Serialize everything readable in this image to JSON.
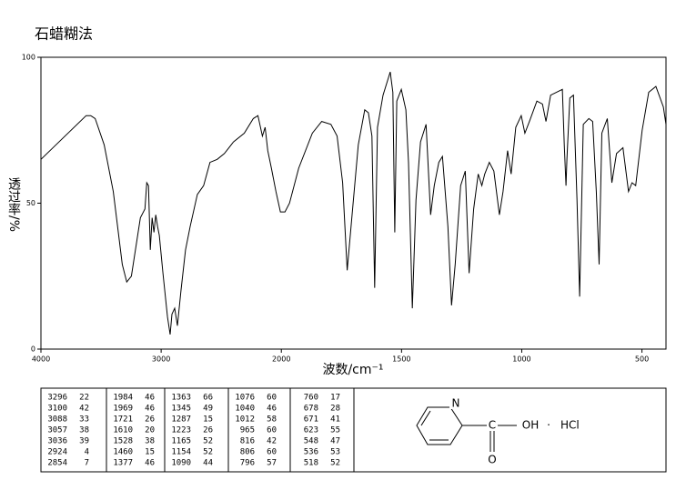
{
  "chart_data": {
    "type": "line",
    "title": "石蜡糊法",
    "xlabel": "波数/cm⁻¹",
    "ylabel": "透过率/%",
    "color": "#000000",
    "xlim": [
      4000,
      400
    ],
    "x_scale_break": 2000,
    "x_scale_ratio": 2,
    "ylim": [
      0,
      100
    ],
    "xticks": [
      4000,
      3000,
      2000,
      1500,
      1000,
      500
    ],
    "yticks": [
      0,
      50,
      100
    ],
    "x": [
      4000,
      3624,
      3586,
      3549,
      3474,
      3398,
      3323,
      3286,
      3248,
      3173,
      3135,
      3120,
      3105,
      3090,
      3075,
      3060,
      3045,
      3030,
      3015,
      2985,
      2947,
      2925,
      2910,
      2887,
      2865,
      2835,
      2797,
      2759,
      2699,
      2647,
      2594,
      2534,
      2474,
      2398,
      2308,
      2233,
      2195,
      2158,
      2135,
      2113,
      2083,
      2045,
      2008,
      1985,
      1966,
      1928,
      1871,
      1832,
      1794,
      1768,
      1745,
      1726,
      1707,
      1680,
      1653,
      1638,
      1623,
      1612,
      1600,
      1577,
      1547,
      1536,
      1528,
      1520,
      1501,
      1482,
      1471,
      1455,
      1440,
      1421,
      1398,
      1379,
      1364,
      1345,
      1330,
      1307,
      1292,
      1277,
      1254,
      1235,
      1219,
      1200,
      1181,
      1166,
      1154,
      1135,
      1116,
      1093,
      1078,
      1059,
      1044,
      1025,
      1002,
      987,
      968,
      937,
      914,
      899,
      880,
      831,
      823,
      816,
      812,
      800,
      785,
      770,
      759,
      744,
      721,
      705,
      690,
      678,
      667,
      644,
      625,
      606,
      579,
      556,
      541,
      526,
      499,
      472,
      442,
      411,
      400
    ],
    "values": [
      65,
      80,
      80,
      79,
      70,
      54,
      29,
      23,
      25,
      45,
      48,
      57,
      56,
      34,
      45,
      40,
      46,
      42,
      39,
      26,
      11,
      5,
      12,
      14,
      8,
      20,
      34,
      42,
      53,
      56,
      64,
      65,
      67,
      71,
      74,
      79,
      80,
      73,
      76,
      68,
      62,
      54,
      47,
      47,
      50,
      62,
      74,
      78,
      77,
      73,
      57,
      27,
      45,
      70,
      82,
      81,
      73,
      21,
      76,
      87,
      95,
      88,
      40,
      85,
      89,
      82,
      64,
      14,
      51,
      71,
      77,
      46,
      56,
      64,
      66,
      42,
      15,
      29,
      56,
      61,
      26,
      48,
      60,
      56,
      60,
      64,
      61,
      46,
      54,
      68,
      60,
      76,
      80,
      74,
      78,
      85,
      84,
      78,
      87,
      89,
      70,
      56,
      65,
      86,
      87,
      51,
      18,
      77,
      79,
      78,
      54,
      29,
      74,
      79,
      57,
      67,
      69,
      54,
      57,
      56,
      75,
      88,
      90,
      83,
      77
    ]
  },
  "peak_table": {
    "columns": [
      [
        [
          3296,
          22
        ],
        [
          3100,
          42
        ],
        [
          3088,
          33
        ],
        [
          3057,
          38
        ],
        [
          3036,
          39
        ],
        [
          2924,
          4
        ],
        [
          2854,
          7
        ]
      ],
      [
        [
          1984,
          46
        ],
        [
          1969,
          46
        ],
        [
          1721,
          26
        ],
        [
          1610,
          20
        ],
        [
          1528,
          38
        ],
        [
          1460,
          15
        ],
        [
          1377,
          46
        ]
      ],
      [
        [
          1363,
          66
        ],
        [
          1345,
          49
        ],
        [
          1287,
          15
        ],
        [
          1223,
          26
        ],
        [
          1165,
          52
        ],
        [
          1154,
          52
        ],
        [
          1090,
          44
        ]
      ],
      [
        [
          1076,
          60
        ],
        [
          1040,
          46
        ],
        [
          1012,
          58
        ],
        [
          965,
          60
        ],
        [
          816,
          42
        ],
        [
          806,
          60
        ],
        [
          796,
          57
        ]
      ],
      [
        [
          760,
          17
        ],
        [
          678,
          28
        ],
        [
          671,
          41
        ],
        [
          623,
          55
        ],
        [
          548,
          47
        ],
        [
          536,
          53
        ],
        [
          518,
          52
        ]
      ]
    ]
  },
  "structure": {
    "ring_atom": "N",
    "carbon": "C",
    "hydroxyl": "OH",
    "dot": "·",
    "salt": "HCl",
    "carbonyl": "O"
  }
}
